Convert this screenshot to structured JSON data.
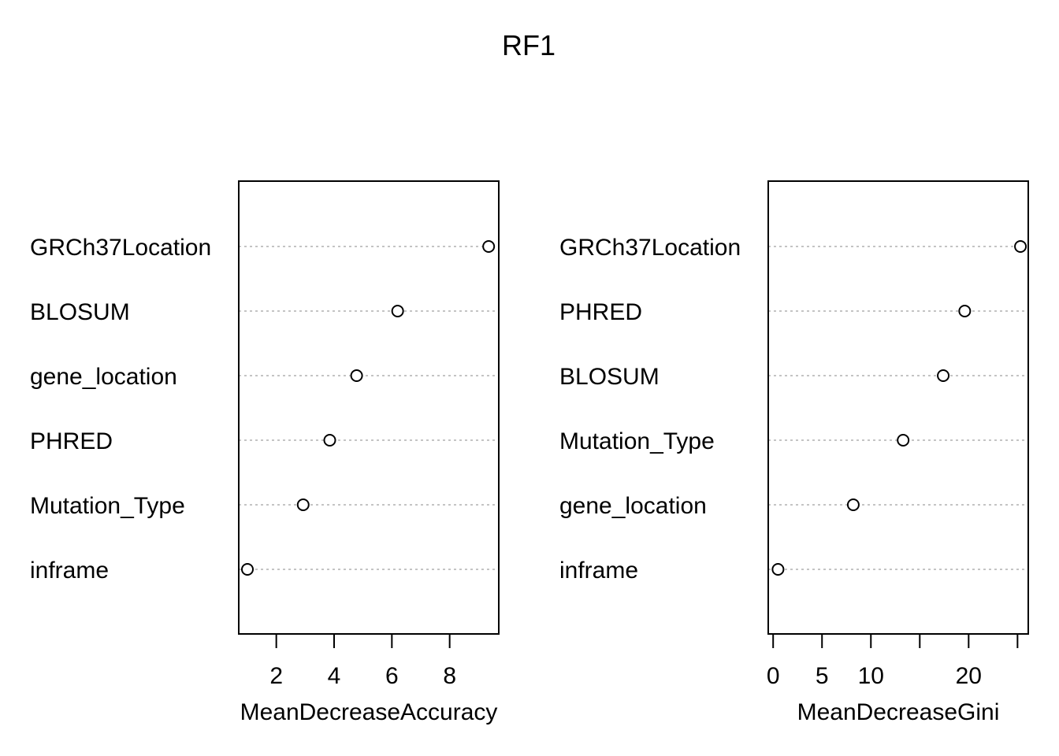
{
  "chart_data": {
    "title": "RF1",
    "panels": [
      {
        "type": "scatter",
        "xlabel": "MeanDecreaseAccuracy",
        "xticks": [
          2,
          4,
          6,
          8
        ],
        "xlim": [
          0.7,
          9.7
        ],
        "categories": [
          "GRCh37Location",
          "BLOSUM",
          "gene_location",
          "PHRED",
          "Mutation_Type",
          "inframe"
        ],
        "values": [
          9.35,
          6.2,
          4.78,
          3.85,
          2.93,
          1.0
        ]
      },
      {
        "type": "scatter",
        "xlabel": "MeanDecreaseGini",
        "xticks": [
          0,
          5,
          10,
          15,
          20,
          25
        ],
        "xtick_labels": [
          "0",
          "5",
          "10",
          "",
          "20",
          ""
        ],
        "xlim": [
          -0.5,
          26.1
        ],
        "categories": [
          "GRCh37Location",
          "PHRED",
          "BLOSUM",
          "Mutation_Type",
          "gene_location",
          "inframe"
        ],
        "values": [
          25.3,
          19.6,
          17.4,
          13.3,
          8.2,
          0.5
        ]
      }
    ],
    "grid": "dotted horizontal",
    "marker": "open circle"
  }
}
